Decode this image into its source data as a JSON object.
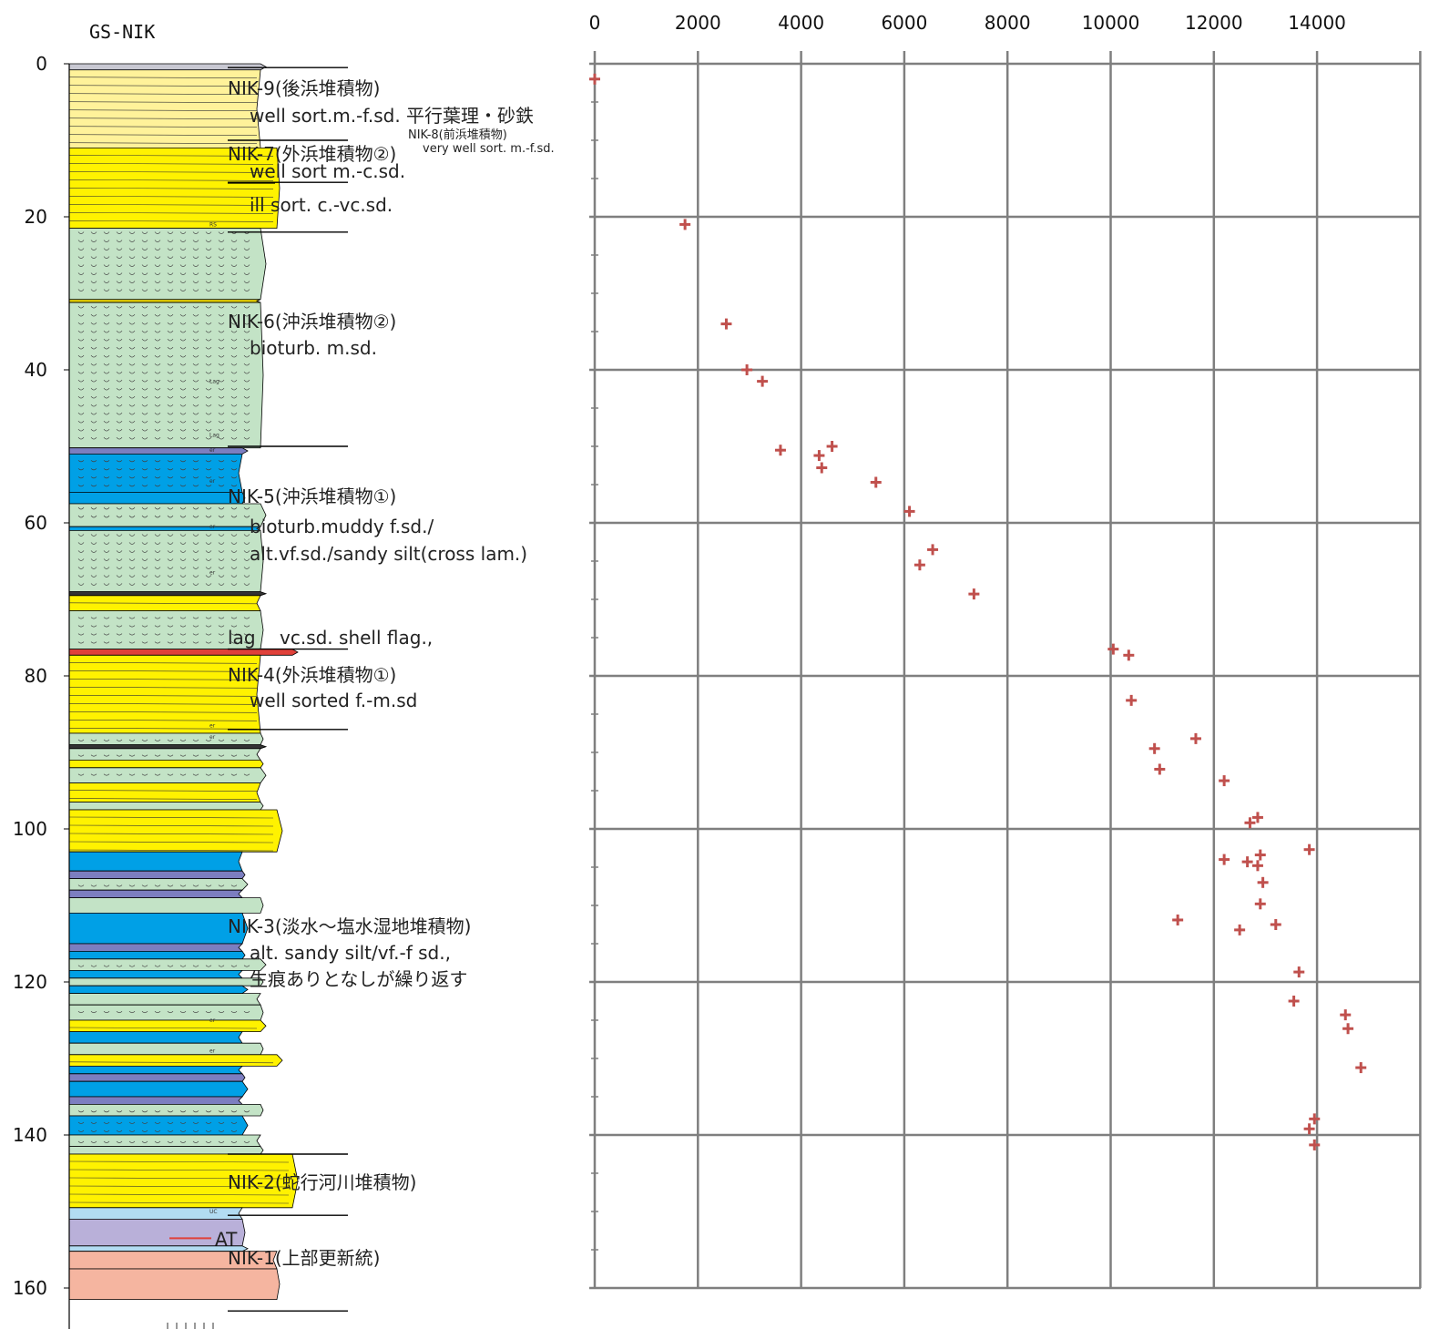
{
  "column": {
    "title": "GS-NIK",
    "depth_ticks": [
      0,
      20,
      40,
      60,
      80,
      100,
      120,
      140,
      160
    ],
    "layers": [
      {
        "top": 0,
        "bottom": 0.8,
        "color": "#c8c8d2",
        "pattern": "none",
        "width": "sand"
      },
      {
        "top": 0.8,
        "bottom": 11,
        "color": "#fff29a",
        "pattern": "none",
        "width": "sand"
      },
      {
        "top": 11,
        "bottom": 21.5,
        "color": "#fff200",
        "pattern": "none",
        "width": "csand"
      },
      {
        "top": 21.5,
        "bottom": 30.8,
        "color": "#c3e3c6",
        "pattern": "bioturb",
        "width": "sand"
      },
      {
        "top": 30.8,
        "bottom": 31.2,
        "color": "#e8d200",
        "pattern": "none",
        "width": "sand"
      },
      {
        "top": 31.2,
        "bottom": 50.2,
        "color": "#c3e3c6",
        "pattern": "bioturb",
        "width": "sand"
      },
      {
        "top": 50.2,
        "bottom": 51,
        "color": "#7c7ec0",
        "pattern": "none",
        "width": "silt"
      },
      {
        "top": 51,
        "bottom": 56,
        "color": "#00a0e6",
        "pattern": "wavy",
        "width": "silt"
      },
      {
        "top": 56,
        "bottom": 57.5,
        "color": "#00a0e6",
        "pattern": "none",
        "width": "silt"
      },
      {
        "top": 57.5,
        "bottom": 60.5,
        "color": "#c3e3c6",
        "pattern": "bioturb",
        "width": "sand"
      },
      {
        "top": 60.5,
        "bottom": 61,
        "color": "#00a0e6",
        "pattern": "none",
        "width": "sand"
      },
      {
        "top": 61,
        "bottom": 69,
        "color": "#c3e3c6",
        "pattern": "bioturb",
        "width": "sand"
      },
      {
        "top": 69,
        "bottom": 69.5,
        "color": "#333333",
        "pattern": "none",
        "width": "sand"
      },
      {
        "top": 69.5,
        "bottom": 71.5,
        "color": "#fff200",
        "pattern": "none",
        "width": "sand"
      },
      {
        "top": 71.5,
        "bottom": 76.5,
        "color": "#c3e3c6",
        "pattern": "wavy",
        "width": "sand"
      },
      {
        "top": 76.5,
        "bottom": 77.3,
        "color": "#e0413a",
        "pattern": "none",
        "width": "gravel"
      },
      {
        "top": 77.3,
        "bottom": 87.5,
        "color": "#fff200",
        "pattern": "none",
        "width": "sand"
      },
      {
        "top": 87.5,
        "bottom": 89,
        "color": "#c3e3c6",
        "pattern": "wavy",
        "width": "sand"
      },
      {
        "top": 89,
        "bottom": 89.5,
        "color": "#333333",
        "pattern": "none",
        "width": "sand"
      },
      {
        "top": 89.5,
        "bottom": 91,
        "color": "#c3e3c6",
        "pattern": "wavy",
        "width": "sand"
      },
      {
        "top": 91,
        "bottom": 92,
        "color": "#fff200",
        "pattern": "none",
        "width": "sand"
      },
      {
        "top": 92,
        "bottom": 94,
        "color": "#c3e3c6",
        "pattern": "wavy",
        "width": "sand"
      },
      {
        "top": 94,
        "bottom": 96.5,
        "color": "#fff200",
        "pattern": "none",
        "width": "sand"
      },
      {
        "top": 96.5,
        "bottom": 97.5,
        "color": "#c3e3c6",
        "pattern": "wavy",
        "width": "sand"
      },
      {
        "top": 97.5,
        "bottom": 103,
        "color": "#fff200",
        "pattern": "none",
        "width": "csand"
      },
      {
        "top": 103,
        "bottom": 105.5,
        "color": "#00a0e6",
        "pattern": "none",
        "width": "silt"
      },
      {
        "top": 105.5,
        "bottom": 106.5,
        "color": "#7c7ec0",
        "pattern": "none",
        "width": "silt"
      },
      {
        "top": 106.5,
        "bottom": 108,
        "color": "#c3e3c6",
        "pattern": "wavy",
        "width": "silt"
      },
      {
        "top": 108,
        "bottom": 109,
        "color": "#7c7ec0",
        "pattern": "none",
        "width": "silt"
      },
      {
        "top": 109,
        "bottom": 111,
        "color": "#c3e3c6",
        "pattern": "none",
        "width": "sand"
      },
      {
        "top": 111,
        "bottom": 115,
        "color": "#00a0e6",
        "pattern": "none",
        "width": "silt"
      },
      {
        "top": 115,
        "bottom": 116,
        "color": "#7c7ec0",
        "pattern": "none",
        "width": "silt"
      },
      {
        "top": 116,
        "bottom": 117,
        "color": "#00a0e6",
        "pattern": "none",
        "width": "silt"
      },
      {
        "top": 117,
        "bottom": 118.5,
        "color": "#c3e3c6",
        "pattern": "wavy",
        "width": "sand"
      },
      {
        "top": 118.5,
        "bottom": 119.5,
        "color": "#00a0e6",
        "pattern": "none",
        "width": "silt"
      },
      {
        "top": 119.5,
        "bottom": 120.5,
        "color": "#c3e3c6",
        "pattern": "none",
        "width": "sand"
      },
      {
        "top": 120.5,
        "bottom": 121.5,
        "color": "#00a0e6",
        "pattern": "none",
        "width": "silt"
      },
      {
        "top": 121.5,
        "bottom": 123,
        "color": "#c3e3c6",
        "pattern": "none",
        "width": "sand"
      },
      {
        "top": 123,
        "bottom": 125,
        "color": "#c3e3c6",
        "pattern": "wavy",
        "width": "sand"
      },
      {
        "top": 125,
        "bottom": 126.5,
        "color": "#fff200",
        "pattern": "none",
        "width": "sand"
      },
      {
        "top": 126.5,
        "bottom": 128,
        "color": "#00a0e6",
        "pattern": "none",
        "width": "silt"
      },
      {
        "top": 128,
        "bottom": 129.5,
        "color": "#c3e3c6",
        "pattern": "none",
        "width": "sand"
      },
      {
        "top": 129.5,
        "bottom": 131,
        "color": "#fff200",
        "pattern": "none",
        "width": "csand"
      },
      {
        "top": 131,
        "bottom": 132,
        "color": "#00a0e6",
        "pattern": "none",
        "width": "silt"
      },
      {
        "top": 132,
        "bottom": 133,
        "color": "#7c7ec0",
        "pattern": "none",
        "width": "silt"
      },
      {
        "top": 133,
        "bottom": 135,
        "color": "#00a0e6",
        "pattern": "none",
        "width": "silt"
      },
      {
        "top": 135,
        "bottom": 136,
        "color": "#7c7ec0",
        "pattern": "none",
        "width": "silt"
      },
      {
        "top": 136,
        "bottom": 137.5,
        "color": "#c3e3c6",
        "pattern": "wavy",
        "width": "sand"
      },
      {
        "top": 137.5,
        "bottom": 140,
        "color": "#00a0e6",
        "pattern": "wavy",
        "width": "silt"
      },
      {
        "top": 140,
        "bottom": 141.5,
        "color": "#c3e3c6",
        "pattern": "wavy",
        "width": "sand"
      },
      {
        "top": 141.5,
        "bottom": 142.5,
        "color": "#c3e3c6",
        "pattern": "none",
        "width": "sand"
      },
      {
        "top": 142.5,
        "bottom": 149.5,
        "color": "#fff200",
        "pattern": "none",
        "width": "gravel"
      },
      {
        "top": 149.5,
        "bottom": 151,
        "color": "#b2dcf2",
        "pattern": "none",
        "width": "silt"
      },
      {
        "top": 151,
        "bottom": 154.5,
        "color": "#b9b0d9",
        "pattern": "none",
        "width": "silt"
      },
      {
        "top": 154.5,
        "bottom": 155.2,
        "color": "#b2dcf2",
        "pattern": "none",
        "width": "silt"
      },
      {
        "top": 155.2,
        "bottom": 157.5,
        "color": "#f5b5a0",
        "pattern": "none",
        "width": "csand"
      },
      {
        "top": 157.5,
        "bottom": 161.5,
        "color": "#f5b5a0",
        "pattern": "none",
        "width": "csand"
      }
    ],
    "small_marks": [
      {
        "depth": 21,
        "text": "RS"
      },
      {
        "depth": 41.5,
        "text": "Lag"
      },
      {
        "depth": 48.5,
        "text": "Lag"
      },
      {
        "depth": 50.5,
        "text": "er"
      },
      {
        "depth": 54.5,
        "text": "er"
      },
      {
        "depth": 60.5,
        "text": "er"
      },
      {
        "depth": 66.5,
        "text": "er"
      },
      {
        "depth": 86.5,
        "text": "er"
      },
      {
        "depth": 88,
        "text": "er"
      },
      {
        "depth": 125,
        "text": "er"
      },
      {
        "depth": 129,
        "text": "er"
      },
      {
        "depth": 150,
        "text": "UC"
      }
    ],
    "at_marker": {
      "depth": 153.5,
      "label": "AT"
    }
  },
  "units": [
    {
      "lines": [
        "NIK-9(後浜堆積物)",
        "well sort.m.-f.sd. 平行葉理・砂鉄"
      ]
    },
    {
      "lines": [
        "NIK-8(前浜堆積物)",
        "very well sort. m.-f.sd."
      ]
    },
    {
      "lines": [
        "NIK-7(外浜堆積物②)",
        "well sort m.-c.sd.",
        "ill sort. c.-vc.sd."
      ]
    },
    {
      "lines": [
        "NIK-6(沖浜堆積物②)",
        "bioturb. m.sd."
      ]
    },
    {
      "lines": [
        "NIK-5(沖浜堆積物①)",
        "bioturb.muddy f.sd./",
        "alt.vf.sd./sandy silt(cross lam.)"
      ]
    },
    {
      "lines": [
        "lag",
        "vc.sd. shell flag.,"
      ]
    },
    {
      "lines": [
        "NIK-4(外浜堆積物①)",
        "well sorted f.-m.sd"
      ]
    },
    {
      "lines": [
        "NIK-3(淡水～塩水湿地堆積物)",
        "alt. sandy silt/vf.-f sd.,",
        "生痕ありとなしが繰り返す"
      ]
    },
    {
      "lines": [
        "NIK-2(蛇行河川堆積物)"
      ]
    },
    {
      "lines": [
        "NIK-1(上部更新統)"
      ]
    }
  ],
  "boundaries": [
    0.5,
    10,
    15.5,
    22,
    50,
    76.5,
    87,
    142.5,
    150.5,
    163
  ],
  "chart_data": {
    "type": "scatter",
    "title": "",
    "xlabel": "",
    "ylabel": "",
    "xlim": [
      0,
      15500
    ],
    "ylim": [
      0,
      160
    ],
    "x_ticks": [
      0,
      2000,
      4000,
      6000,
      8000,
      10000,
      12000,
      14000
    ],
    "y_reversed": true,
    "grid": true,
    "marker": "plus",
    "marker_color": "#c0504d",
    "points": [
      {
        "x": 0,
        "y": 2
      },
      {
        "x": 1750,
        "y": 21
      },
      {
        "x": 2550,
        "y": 34
      },
      {
        "x": 2950,
        "y": 40
      },
      {
        "x": 3250,
        "y": 41.5
      },
      {
        "x": 3600,
        "y": 50.5
      },
      {
        "x": 4600,
        "y": 50
      },
      {
        "x": 4350,
        "y": 51.2
      },
      {
        "x": 4400,
        "y": 52.8
      },
      {
        "x": 5450,
        "y": 54.7
      },
      {
        "x": 6100,
        "y": 58.5
      },
      {
        "x": 6550,
        "y": 63.5
      },
      {
        "x": 6300,
        "y": 65.5
      },
      {
        "x": 7350,
        "y": 69.3
      },
      {
        "x": 10050,
        "y": 76.5
      },
      {
        "x": 10350,
        "y": 77.3
      },
      {
        "x": 10400,
        "y": 83.2
      },
      {
        "x": 11650,
        "y": 88.2
      },
      {
        "x": 10850,
        "y": 89.5
      },
      {
        "x": 10950,
        "y": 92.2
      },
      {
        "x": 12200,
        "y": 93.7
      },
      {
        "x": 12850,
        "y": 98.5
      },
      {
        "x": 12700,
        "y": 99.2
      },
      {
        "x": 13850,
        "y": 102.7
      },
      {
        "x": 12900,
        "y": 103.4
      },
      {
        "x": 12200,
        "y": 104
      },
      {
        "x": 12650,
        "y": 104.3
      },
      {
        "x": 12850,
        "y": 104.8
      },
      {
        "x": 12950,
        "y": 107
      },
      {
        "x": 12900,
        "y": 109.8
      },
      {
        "x": 11300,
        "y": 111.9
      },
      {
        "x": 13200,
        "y": 112.5
      },
      {
        "x": 12500,
        "y": 113.2
      },
      {
        "x": 13650,
        "y": 118.7
      },
      {
        "x": 13550,
        "y": 122.5
      },
      {
        "x": 14550,
        "y": 124.3
      },
      {
        "x": 14600,
        "y": 126.1
      },
      {
        "x": 14850,
        "y": 131.2
      },
      {
        "x": 13950,
        "y": 137.9
      },
      {
        "x": 13850,
        "y": 139.2
      },
      {
        "x": 13950,
        "y": 141.3
      }
    ]
  }
}
